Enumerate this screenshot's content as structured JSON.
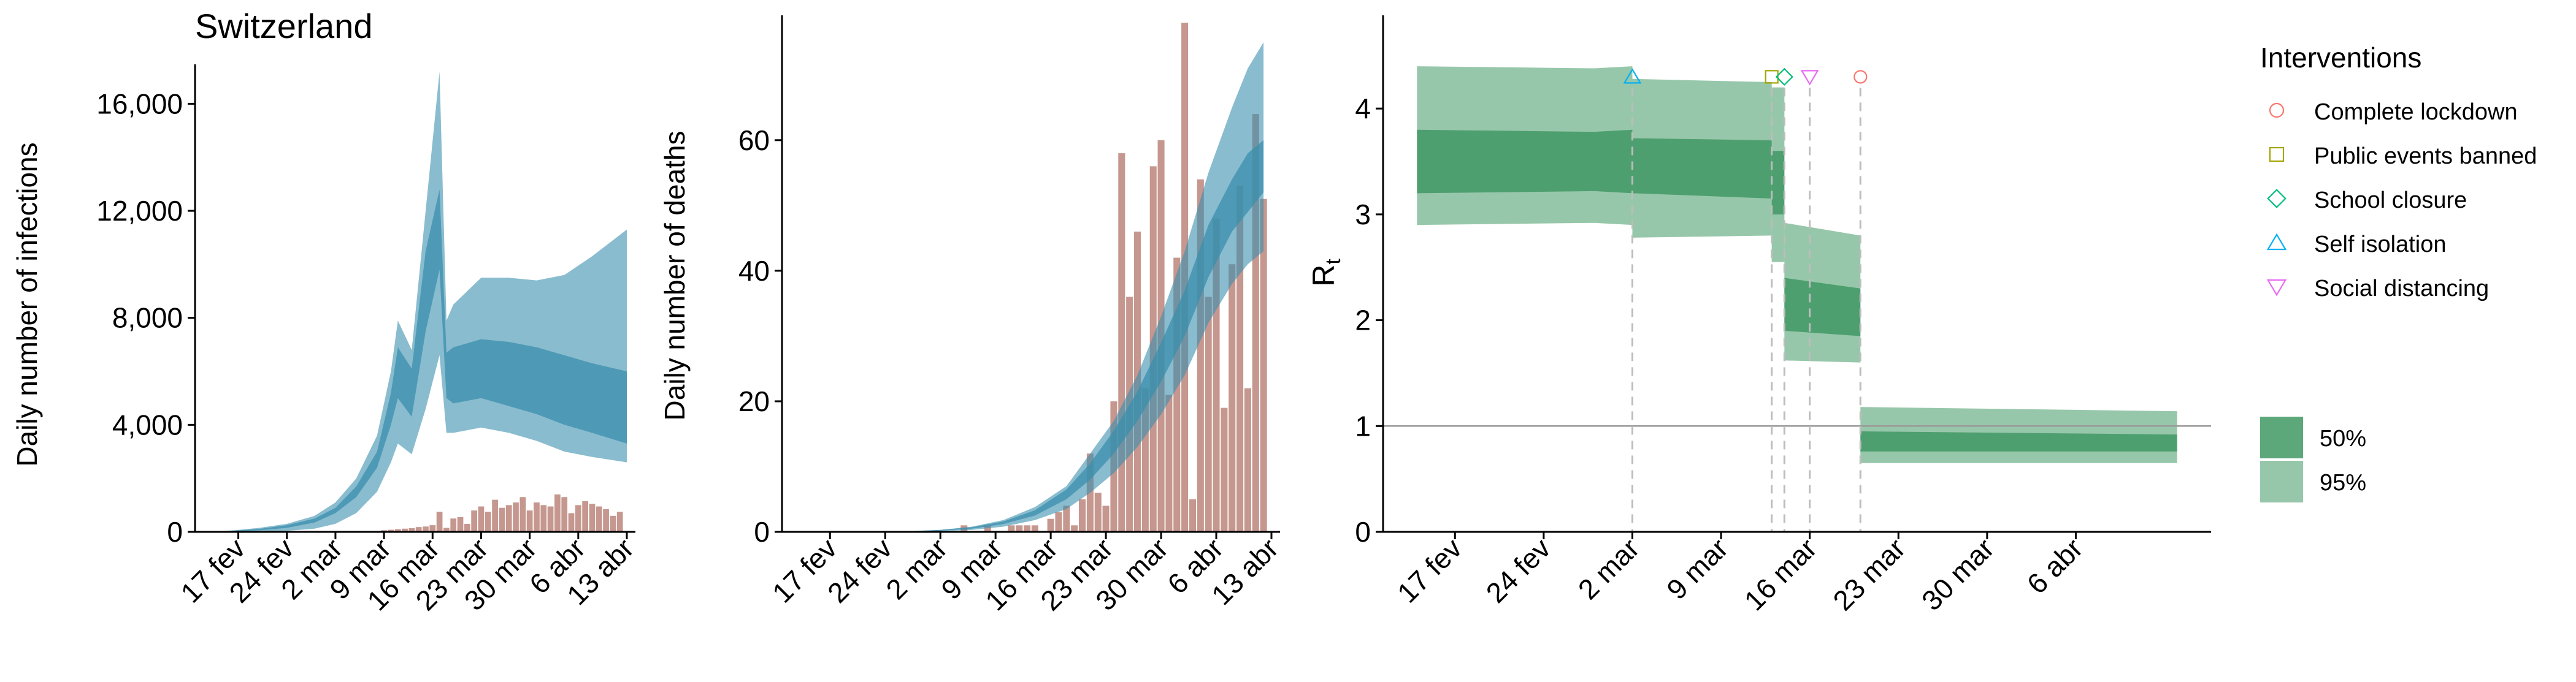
{
  "title": "Switzerland",
  "colors": {
    "infection_band": "#3b8fad",
    "death_bar": "#c08e86",
    "rt_band": "#2f8f55",
    "axis": "#000000",
    "intervention_line": "#bdbdbd",
    "reference_line": "#999999",
    "lockdown": "#f8766d",
    "public_events": "#a3a500",
    "school_closure": "#00bf7d",
    "self_isolation": "#00b0f6",
    "social_distancing": "#e76bf3"
  },
  "legend": {
    "interventions_title": "Interventions",
    "interventions": [
      {
        "label": "Complete lockdown",
        "marker": "circle",
        "color": "#f8766d"
      },
      {
        "label": "Public events banned",
        "marker": "square",
        "color": "#a3a500"
      },
      {
        "label": "School closure",
        "marker": "diamond",
        "color": "#00bf7d"
      },
      {
        "label": "Self isolation",
        "marker": "triangle-up",
        "color": "#00b0f6"
      },
      {
        "label": "Social distancing",
        "marker": "triangle-down",
        "color": "#e76bf3"
      }
    ],
    "bands": [
      {
        "label": "50%"
      },
      {
        "label": "95%"
      }
    ]
  },
  "chart_data": [
    {
      "type": "area",
      "ylabel": "Daily number of infections",
      "x_start": "2020-02-12",
      "x_end": "2020-04-13",
      "xticks": [
        {
          "date": "2020-02-17",
          "label": "17 fev"
        },
        {
          "date": "2020-02-24",
          "label": "24 fev"
        },
        {
          "date": "2020-03-02",
          "label": "2 mar"
        },
        {
          "date": "2020-03-09",
          "label": "9 mar"
        },
        {
          "date": "2020-03-16",
          "label": "16 mar"
        },
        {
          "date": "2020-03-23",
          "label": "23 mar"
        },
        {
          "date": "2020-03-30",
          "label": "30 mar"
        },
        {
          "date": "2020-04-06",
          "label": "6 abr"
        },
        {
          "date": "2020-04-13",
          "label": "13 abr"
        }
      ],
      "ylim": [
        0,
        17200
      ],
      "yticks": [
        {
          "value": 0,
          "label": "0"
        },
        {
          "value": 4000,
          "label": "4,000"
        },
        {
          "value": 8000,
          "label": "8,000"
        },
        {
          "value": 12000,
          "label": "12,000"
        },
        {
          "value": 16000,
          "label": "16,000"
        }
      ],
      "band_dates": [
        "2020-02-12",
        "2020-02-16",
        "2020-02-20",
        "2020-02-24",
        "2020-02-28",
        "2020-03-02",
        "2020-03-05",
        "2020-03-08",
        "2020-03-10",
        "2020-03-11",
        "2020-03-13",
        "2020-03-15",
        "2020-03-17",
        "2020-03-18",
        "2020-03-19",
        "2020-03-23",
        "2020-03-27",
        "2020-03-31",
        "2020-04-04",
        "2020-04-08",
        "2020-04-13"
      ],
      "band95_low": [
        0,
        0,
        10,
        40,
        120,
        300,
        700,
        1500,
        2600,
        3300,
        2900,
        4600,
        6600,
        3700,
        3700,
        3900,
        3700,
        3400,
        3000,
        2800,
        2600
      ],
      "band95_high": [
        0,
        50,
        150,
        300,
        600,
        1100,
        2000,
        3600,
        6000,
        7900,
        6800,
        12000,
        17200,
        7900,
        8500,
        9500,
        9500,
        9400,
        9600,
        10300,
        11300
      ],
      "band50_low": [
        0,
        20,
        60,
        150,
        350,
        700,
        1300,
        2400,
        4000,
        5000,
        4300,
        7500,
        9800,
        5000,
        4800,
        5000,
        4700,
        4400,
        4000,
        3700,
        3300
      ],
      "band50_high": [
        0,
        40,
        110,
        250,
        500,
        900,
        1700,
        3000,
        5200,
        6900,
        6100,
        10500,
        12800,
        6700,
        6900,
        7200,
        7100,
        6900,
        6600,
        6300,
        6000
      ],
      "bar_dates": [
        "2020-03-08",
        "2020-03-09",
        "2020-03-10",
        "2020-03-11",
        "2020-03-12",
        "2020-03-13",
        "2020-03-14",
        "2020-03-15",
        "2020-03-16",
        "2020-03-17",
        "2020-03-18",
        "2020-03-19",
        "2020-03-20",
        "2020-03-21",
        "2020-03-22",
        "2020-03-23",
        "2020-03-24",
        "2020-03-25",
        "2020-03-26",
        "2020-03-27",
        "2020-03-28",
        "2020-03-29",
        "2020-03-30",
        "2020-03-31",
        "2020-04-01",
        "2020-04-02",
        "2020-04-03",
        "2020-04-04",
        "2020-04-05",
        "2020-04-06",
        "2020-04-07",
        "2020-04-08",
        "2020-04-09",
        "2020-04-10",
        "2020-04-11",
        "2020-04-12"
      ],
      "bar_values": [
        30,
        60,
        80,
        100,
        120,
        140,
        180,
        200,
        250,
        750,
        150,
        500,
        550,
        300,
        800,
        950,
        750,
        1200,
        900,
        1000,
        1100,
        1300,
        800,
        1100,
        1000,
        950,
        1400,
        1300,
        700,
        1000,
        1150,
        1050,
        950,
        850,
        600,
        750
      ]
    },
    {
      "type": "area",
      "ylabel": "Daily number of deaths",
      "x_start": "2020-02-12",
      "x_end": "2020-04-13",
      "xticks": [
        {
          "date": "2020-02-17",
          "label": "17 fev"
        },
        {
          "date": "2020-02-24",
          "label": "24 fev"
        },
        {
          "date": "2020-03-02",
          "label": "2 mar"
        },
        {
          "date": "2020-03-09",
          "label": "9 mar"
        },
        {
          "date": "2020-03-16",
          "label": "16 mar"
        },
        {
          "date": "2020-03-23",
          "label": "23 mar"
        },
        {
          "date": "2020-03-30",
          "label": "30 mar"
        },
        {
          "date": "2020-04-06",
          "label": "6 abr"
        },
        {
          "date": "2020-04-13",
          "label": "13 abr"
        }
      ],
      "ylim": [
        0,
        78
      ],
      "yticks": [
        {
          "value": 0,
          "label": "0"
        },
        {
          "value": 20,
          "label": "20"
        },
        {
          "value": 40,
          "label": "40"
        },
        {
          "value": 60,
          "label": "60"
        }
      ],
      "band_dates": [
        "2020-02-12",
        "2020-02-27",
        "2020-03-02",
        "2020-03-06",
        "2020-03-10",
        "2020-03-14",
        "2020-03-18",
        "2020-03-21",
        "2020-03-24",
        "2020-03-27",
        "2020-03-30",
        "2020-04-02",
        "2020-04-05",
        "2020-04-08",
        "2020-04-10",
        "2020-04-12"
      ],
      "band95_low": [
        0,
        0,
        0.1,
        0.3,
        0.8,
        1.8,
        3.5,
        6,
        9,
        13,
        18,
        24,
        32,
        38,
        41,
        43
      ],
      "band95_high": [
        0,
        0.1,
        0.3,
        0.8,
        1.8,
        3.8,
        7,
        12,
        17,
        24,
        33,
        43,
        55,
        65,
        71,
        75
      ],
      "band50_low": [
        0,
        0,
        0.2,
        0.5,
        1.2,
        2.5,
        5,
        8,
        12,
        17,
        23,
        30,
        39,
        46,
        49,
        52
      ],
      "band50_high": [
        0,
        0.1,
        0.3,
        0.7,
        1.6,
        3.3,
        6.5,
        10.5,
        15.5,
        21.5,
        29,
        37,
        47,
        54,
        58,
        60
      ],
      "bar_dates": [
        "2020-03-05",
        "2020-03-06",
        "2020-03-07",
        "2020-03-08",
        "2020-03-09",
        "2020-03-10",
        "2020-03-11",
        "2020-03-12",
        "2020-03-13",
        "2020-03-14",
        "2020-03-15",
        "2020-03-16",
        "2020-03-17",
        "2020-03-18",
        "2020-03-19",
        "2020-03-20",
        "2020-03-21",
        "2020-03-22",
        "2020-03-23",
        "2020-03-24",
        "2020-03-25",
        "2020-03-26",
        "2020-03-27",
        "2020-03-28",
        "2020-03-29",
        "2020-03-30",
        "2020-03-31",
        "2020-04-01",
        "2020-04-02",
        "2020-04-03",
        "2020-04-04",
        "2020-04-05",
        "2020-04-06",
        "2020-04-07",
        "2020-04-08",
        "2020-04-09",
        "2020-04-10",
        "2020-04-11",
        "2020-04-12"
      ],
      "bar_values": [
        1,
        0,
        0,
        1,
        0,
        0,
        1,
        1,
        1,
        1,
        0,
        2,
        3,
        4,
        1,
        5,
        12,
        6,
        4,
        20,
        58,
        36,
        46,
        22,
        56,
        60,
        21,
        42,
        78,
        5,
        54,
        36,
        48,
        19,
        41,
        53,
        22,
        64,
        51
      ]
    },
    {
      "type": "area",
      "ylabel": "R",
      "ylabel_sub": "t",
      "x_start": "2020-02-12",
      "x_end": "2020-04-16",
      "xticks": [
        {
          "date": "2020-02-17",
          "label": "17 fev"
        },
        {
          "date": "2020-02-24",
          "label": "24 fev"
        },
        {
          "date": "2020-03-02",
          "label": "2 mar"
        },
        {
          "date": "2020-03-09",
          "label": "9 mar"
        },
        {
          "date": "2020-03-16",
          "label": "16 mar"
        },
        {
          "date": "2020-03-23",
          "label": "23 mar"
        },
        {
          "date": "2020-03-30",
          "label": "30 mar"
        },
        {
          "date": "2020-04-06",
          "label": "6 abr"
        }
      ],
      "ylim": [
        0,
        4.8
      ],
      "yticks": [
        {
          "value": 0,
          "label": "0"
        },
        {
          "value": 1,
          "label": "1"
        },
        {
          "value": 2,
          "label": "2"
        },
        {
          "value": 3,
          "label": "3"
        },
        {
          "value": 4,
          "label": "4"
        }
      ],
      "reference_line": 1,
      "segments": [
        {
          "start": "2020-02-14",
          "end": "2020-02-28",
          "p95_start": [
            2.9,
            4.4
          ],
          "p95_end": [
            2.92,
            4.38
          ],
          "p50_start": [
            3.2,
            3.8
          ],
          "p50_end": [
            3.22,
            3.78
          ]
        },
        {
          "start": "2020-02-28",
          "end": "2020-03-02",
          "p95_start": [
            2.92,
            4.38
          ],
          "p95_end": [
            2.9,
            4.4
          ],
          "p50_start": [
            3.22,
            3.78
          ],
          "p50_end": [
            3.2,
            3.8
          ]
        },
        {
          "start": "2020-03-02",
          "end": "2020-03-13",
          "p95_start": [
            2.78,
            4.28
          ],
          "p95_end": [
            2.8,
            4.25
          ],
          "p50_start": [
            3.2,
            3.72
          ],
          "p50_end": [
            3.15,
            3.7
          ]
        },
        {
          "start": "2020-03-13",
          "end": "2020-03-14",
          "p95_start": [
            2.55,
            4.2
          ],
          "p95_end": [
            2.55,
            4.2
          ],
          "p50_start": [
            3.0,
            3.6
          ],
          "p50_end": [
            3.0,
            3.6
          ]
        },
        {
          "start": "2020-03-14",
          "end": "2020-03-20",
          "p95_start": [
            1.62,
            2.92
          ],
          "p95_end": [
            1.6,
            2.8
          ],
          "p50_start": [
            1.9,
            2.4
          ],
          "p50_end": [
            1.85,
            2.3
          ]
        },
        {
          "start": "2020-03-20",
          "end": "2020-04-14",
          "p95_start": [
            0.65,
            1.18
          ],
          "p95_end": [
            0.65,
            1.14
          ],
          "p50_start": [
            0.76,
            0.95
          ],
          "p50_end": [
            0.76,
            0.92
          ]
        }
      ],
      "interventions": [
        {
          "date": "2020-03-02",
          "type": "self_isolation",
          "marker": "triangle-up",
          "color": "#00b0f6"
        },
        {
          "date": "2020-03-13",
          "type": "public_events",
          "marker": "square",
          "color": "#a3a500"
        },
        {
          "date": "2020-03-14",
          "type": "school_closure",
          "marker": "diamond",
          "color": "#00bf7d"
        },
        {
          "date": "2020-03-16",
          "type": "social_distancing",
          "marker": "triangle-down",
          "color": "#e76bf3"
        },
        {
          "date": "2020-03-20",
          "type": "lockdown",
          "marker": "circle",
          "color": "#f8766d"
        }
      ],
      "marker_y": 4.3
    }
  ]
}
